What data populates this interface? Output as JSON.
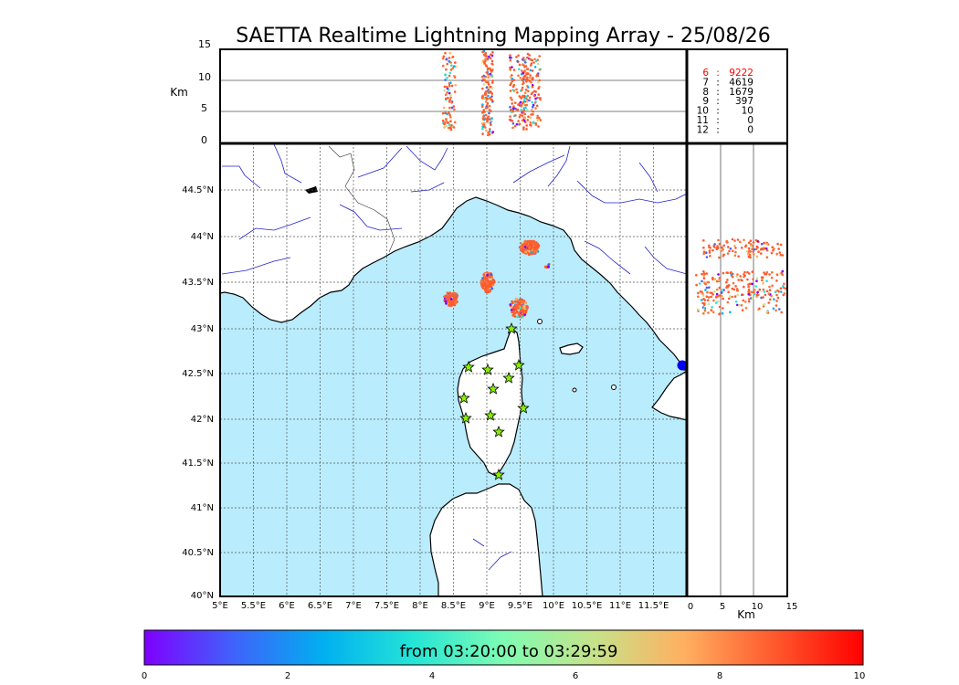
{
  "title": "SAETTA Realtime Lightning Mapping Array - 25/08/26",
  "top_panel": {
    "ylabel": "Km",
    "y_ticks": [
      "15",
      "10",
      "5",
      "0"
    ],
    "counts": [
      {
        "label": "6",
        "sep": ":",
        "value": "9222",
        "color": "#ff0000"
      },
      {
        "label": "7",
        "sep": ":",
        "value": "4619",
        "color": "#000000"
      },
      {
        "label": "8",
        "sep": ":",
        "value": "1679",
        "color": "#000000"
      },
      {
        "label": "9",
        "sep": ":",
        "value": "397",
        "color": "#000000"
      },
      {
        "label": "10",
        "sep": ":",
        "value": "10",
        "color": "#000000"
      },
      {
        "label": "11",
        "sep": ":",
        "value": "0",
        "color": "#000000"
      },
      {
        "label": "12",
        "sep": ":",
        "value": "0",
        "color": "#000000"
      }
    ]
  },
  "map": {
    "lon_ticks": [
      "5°E",
      "5.5°E",
      "6°E",
      "6.5°E",
      "7°E",
      "7.5°E",
      "8°E",
      "8.5°E",
      "9°E",
      "9.5°E",
      "10°E",
      "10.5°E",
      "11°E",
      "11.5°E"
    ],
    "lat_ticks": [
      "44.5°N",
      "44°N",
      "43.5°N",
      "43°N",
      "42.5°N",
      "42°N",
      "41.5°N",
      "41°N",
      "40.5°N",
      "40°N"
    ],
    "colors": {
      "sea": "#b9ecfc",
      "land": "#ffffff",
      "rivers": "#2222cc",
      "grid": "#555555",
      "station": "#88ee00"
    }
  },
  "side_panel": {
    "xlabel": "Km",
    "x_ticks": [
      "0",
      "5",
      "10",
      "15"
    ]
  },
  "colorbar": {
    "label": "from 03:20:00 to 03:29:59",
    "ticks": [
      "0",
      "2",
      "4",
      "6",
      "8",
      "10"
    ],
    "colors": [
      "#7f00ff",
      "#3f63fb",
      "#00b0f0",
      "#25e5d6",
      "#7ffcb3",
      "#c6e38a",
      "#ffb060",
      "#ff5a2d",
      "#ff0000"
    ]
  }
}
